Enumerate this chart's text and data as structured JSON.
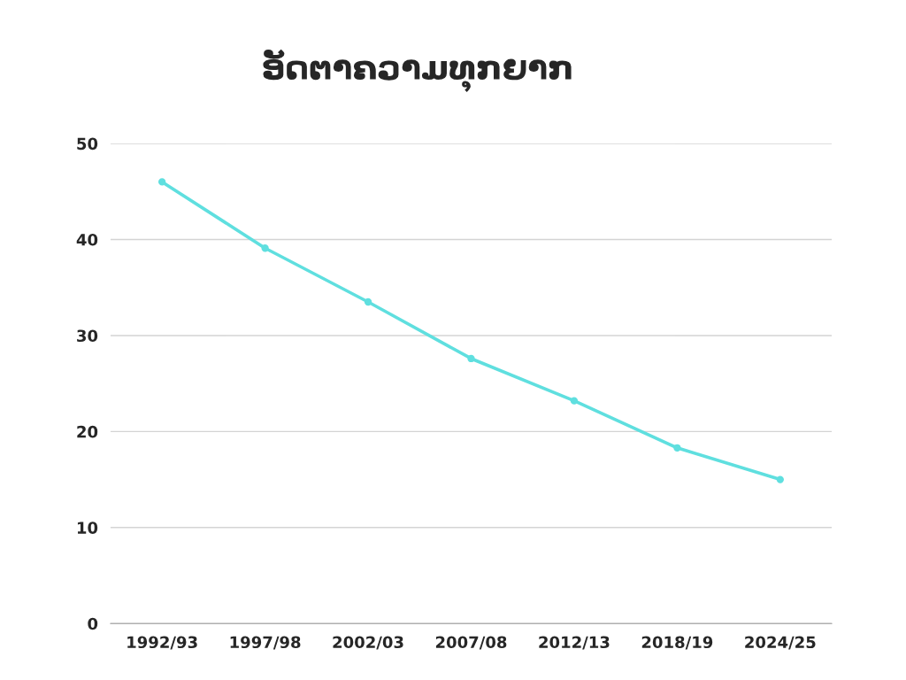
{
  "chart_data": {
    "type": "line",
    "title": "ອັດຕາຄວາມທຸກຍາກ",
    "categories": [
      "1992/93",
      "1997/98",
      "2002/03",
      "2007/08",
      "2012/13",
      "2018/19",
      "2024/25"
    ],
    "series": [
      {
        "color": "#5fdfdf",
        "values": [
          46.0,
          39.1,
          33.5,
          27.6,
          23.2,
          18.3,
          15.0
        ]
      }
    ],
    "ylim": [
      0,
      50
    ],
    "yticks": [
      0,
      10,
      20,
      30,
      40,
      50
    ],
    "grid": "y",
    "marker": "circle",
    "line_style": "solid"
  }
}
